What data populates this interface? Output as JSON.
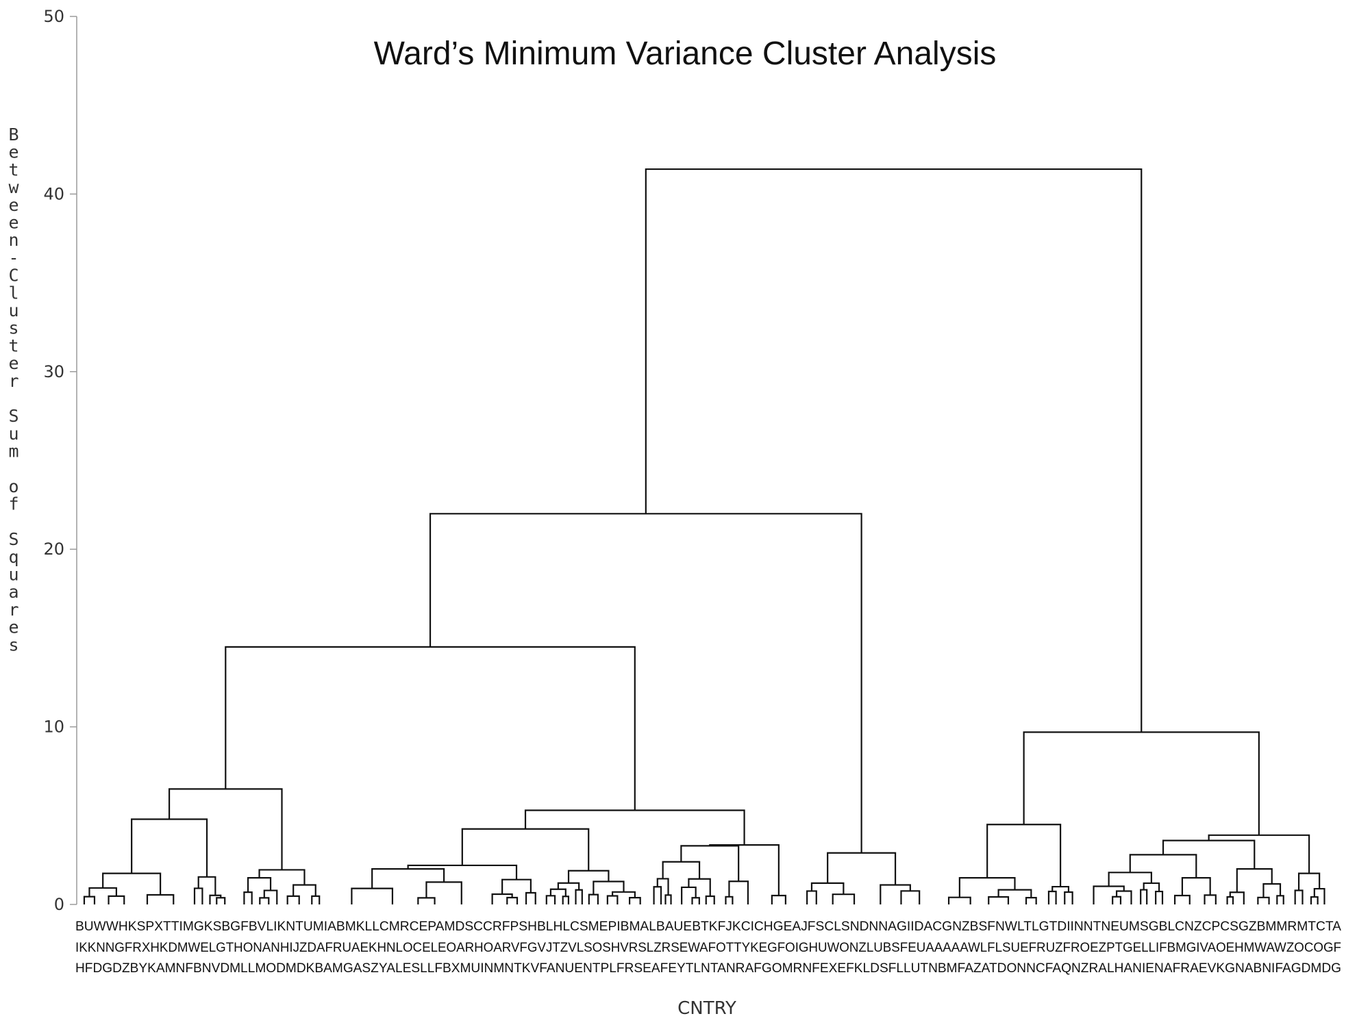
{
  "chart_data": {
    "type": "dendrogram",
    "title": "Ward’s Minimum Variance Cluster Analysis",
    "xlabel": "CNTRY",
    "ylabel": "Between-Cluster Sum of Squares",
    "ylim": [
      0,
      50
    ],
    "yticks": [
      0,
      10,
      20,
      30,
      40,
      50
    ],
    "grid": false,
    "leaf_label_rows": [
      "BUWWHKSPXTTIMGKSBGFBVLIKNTUMIABMKLLCMRCEPAMDSCCRFPSHBLHLCSMEPIBMALBAUEBTKFJKCICHGEAJFSCLSNDNNAGIIDACGNZBSFNWLTLGTDIINNTNEUMSGBLCNZCPCSGZBMMRMTCTA",
      "IKKNNGFRXHKDMWELGTHONANHIJZDAFRUAEKHNLOCELEOARHOARVFGVJTZVLSOSHVRSLZRSEWAFOTTYKEGFOIGHUWONZLUBSFEUAAAAAWLFLSUEFRUZFROEZPTGELLIFBMGIVAOEHMWAWZOCOGF",
      "HFDGDZBYKAMNFBNVDMLLMODMDKBAMGASZYALESLLFBXMUINMNTKVFANUENTPLFRSEAFEYTLNTANRAFGOMRNFEXEFKLDSFLLUTNBMFAZATDONNCFAQNZRALHANIENAFRAEVKGNABNIFAGDMDG"
    ],
    "merges": [
      {
        "height": 41.4,
        "level": "root"
      },
      {
        "height": 22.0,
        "level": "left-main"
      },
      {
        "height": 9.7,
        "level": "right-main"
      },
      {
        "height": 14.5,
        "level": "left-left"
      },
      {
        "height": 2.9,
        "level": "left-right"
      },
      {
        "height": 6.5,
        "level": "cluster-a"
      },
      {
        "height": 5.3,
        "level": "cluster-b"
      },
      {
        "height": 4.5,
        "level": "cluster-c"
      },
      {
        "height": 3.9,
        "level": "cluster-d"
      },
      {
        "height": 4.8,
        "level": "sub-a1"
      },
      {
        "height": 1.95,
        "level": "sub-a2"
      },
      {
        "height": 4.25,
        "level": "sub-b1"
      },
      {
        "height": 3.3,
        "level": "sub-b2"
      },
      {
        "height": 3.6,
        "level": "sub-d1"
      }
    ]
  }
}
